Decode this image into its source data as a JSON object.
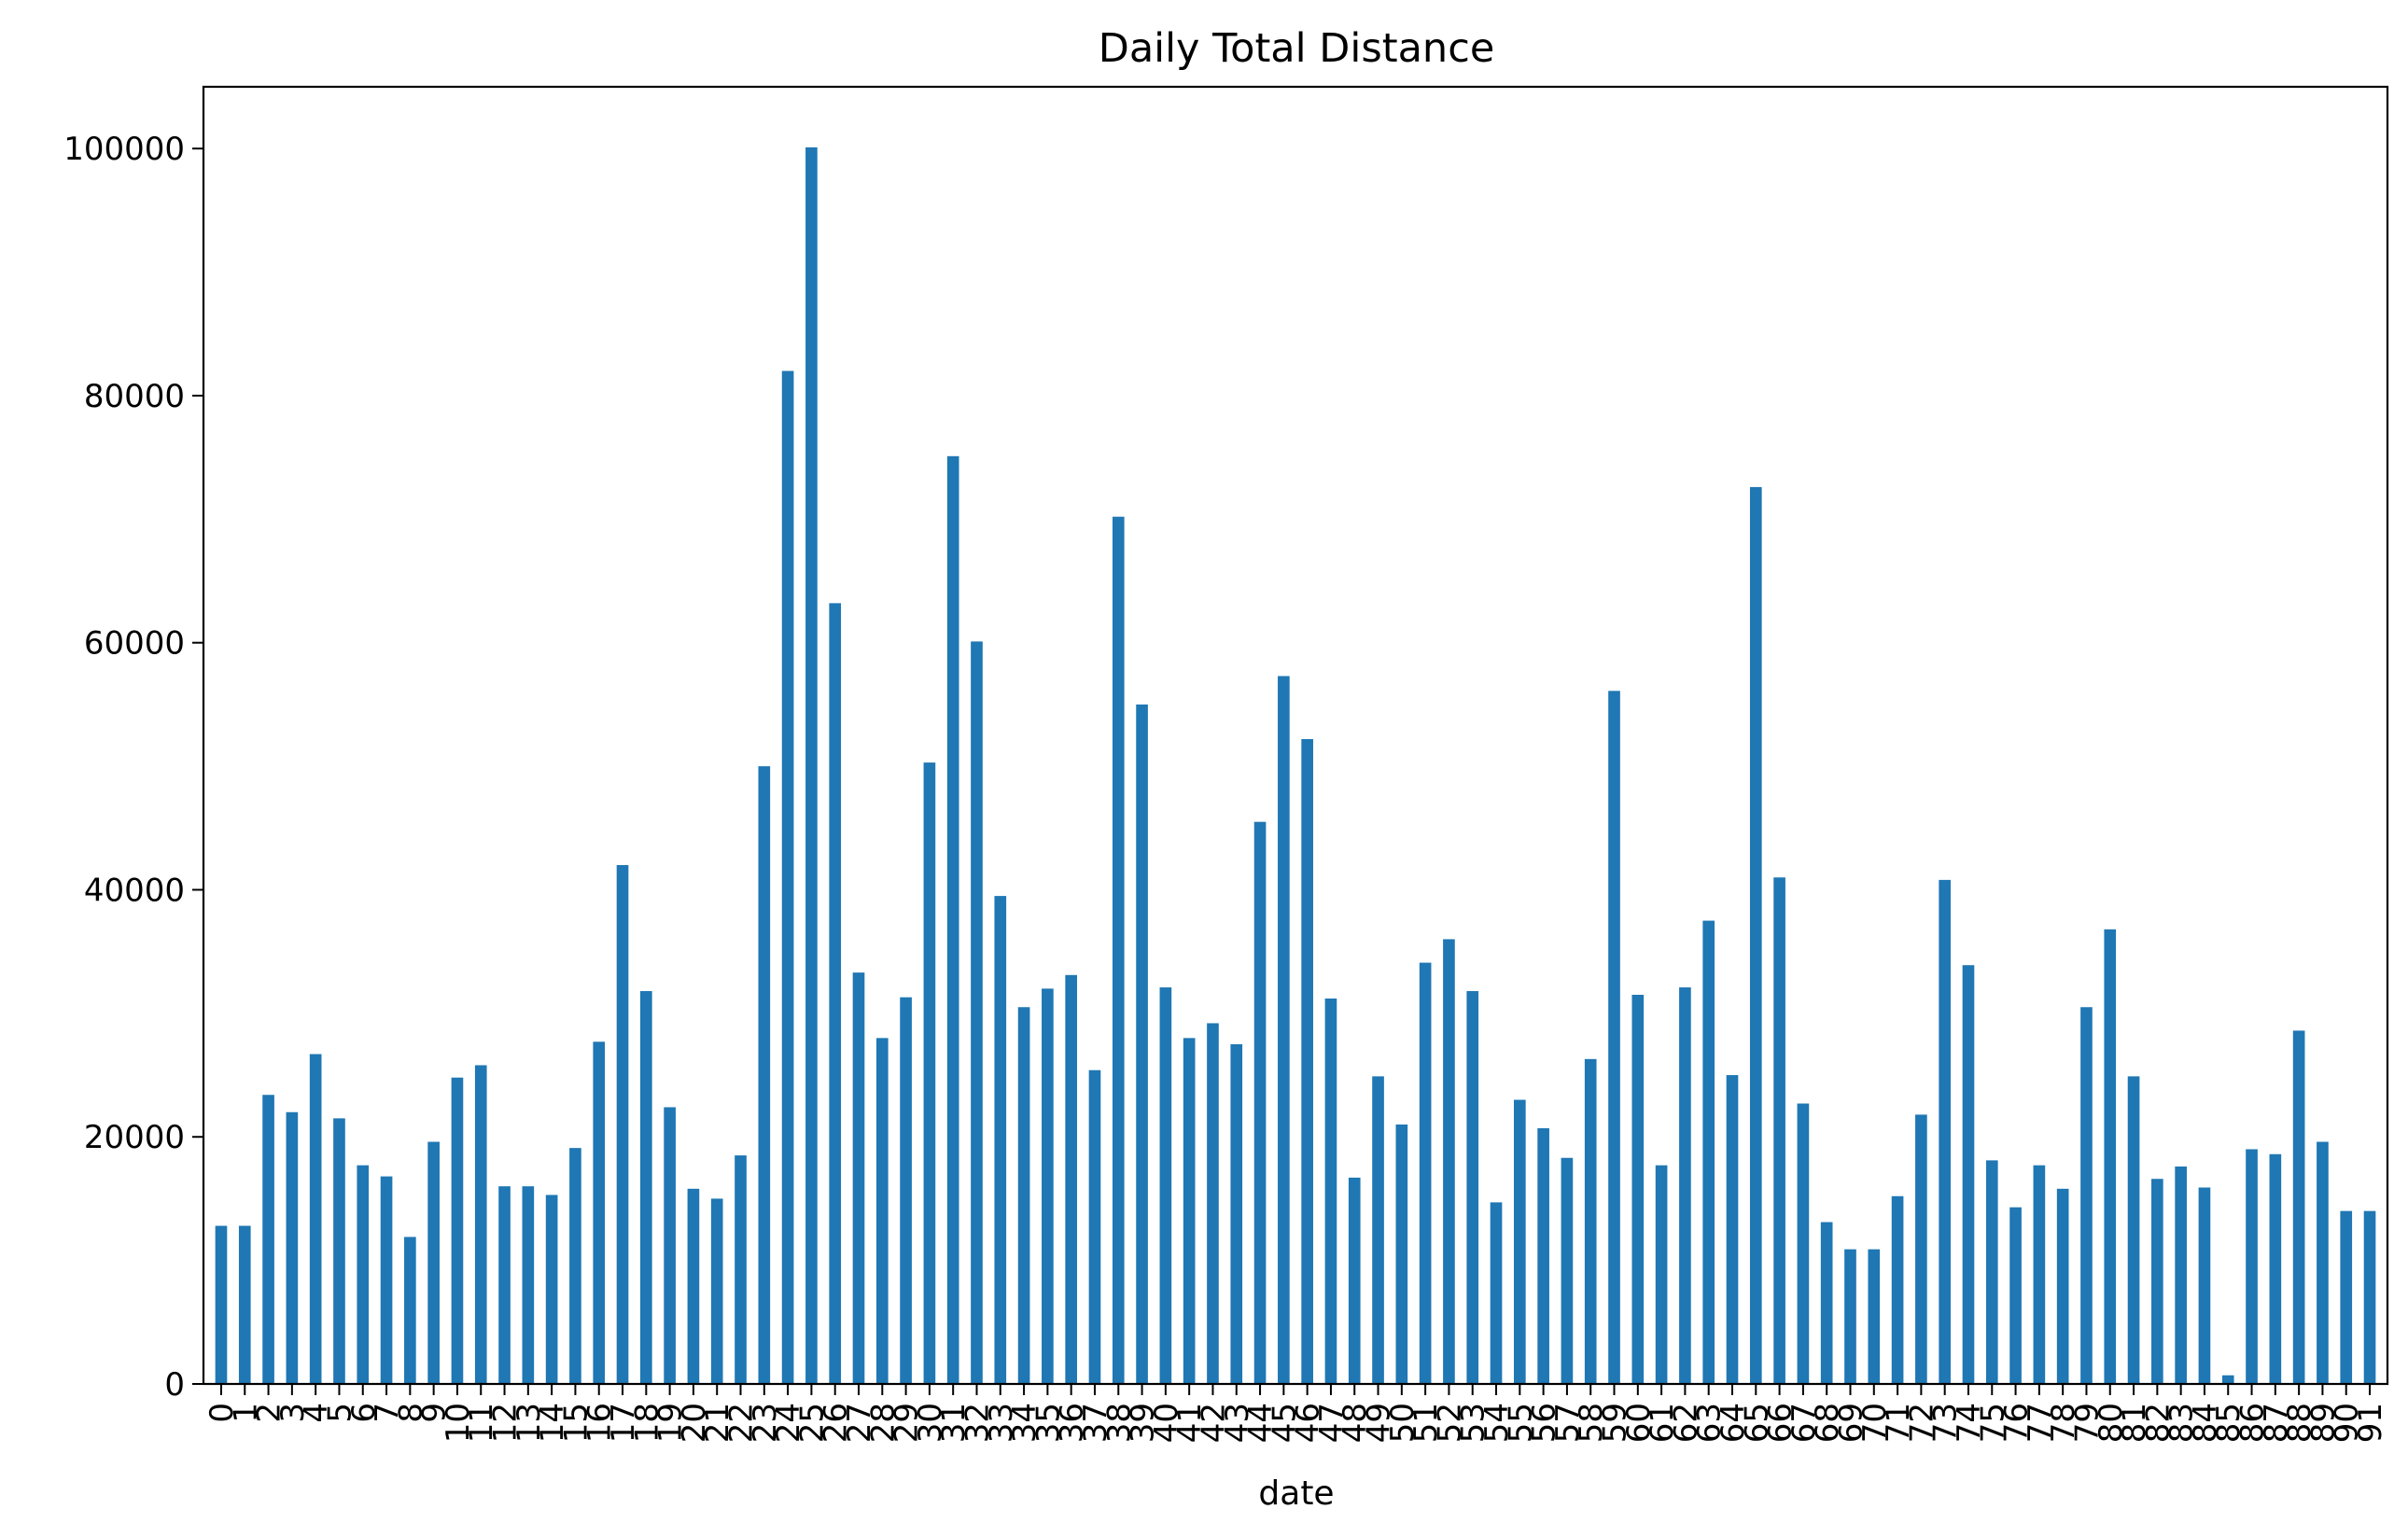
{
  "chart_data": {
    "type": "bar",
    "title": "Daily Total Distance",
    "xlabel": "date",
    "ylabel": "",
    "ylim": [
      0,
      105000
    ],
    "yticks": [
      0,
      20000,
      40000,
      60000,
      80000,
      100000
    ],
    "grid": false,
    "legend": "none",
    "bar_color": "#1f77b4",
    "categories": [
      "0",
      "1",
      "2",
      "3",
      "4",
      "5",
      "6",
      "7",
      "8",
      "9",
      "10",
      "11",
      "12",
      "13",
      "14",
      "15",
      "16",
      "17",
      "18",
      "19",
      "20",
      "21",
      "22",
      "23",
      "24",
      "25",
      "26",
      "27",
      "28",
      "29",
      "30",
      "31",
      "32",
      "33",
      "34",
      "35",
      "36",
      "37",
      "38",
      "39",
      "40",
      "41",
      "42",
      "43",
      "44",
      "45",
      "46",
      "47",
      "48",
      "49",
      "50",
      "51",
      "52",
      "53",
      "54",
      "55",
      "56",
      "57",
      "58",
      "59",
      "60",
      "61",
      "62",
      "63",
      "64",
      "65",
      "66",
      "67",
      "68",
      "69",
      "70",
      "71",
      "72",
      "73",
      "74",
      "75",
      "76",
      "77",
      "78",
      "79",
      "80",
      "81",
      "82",
      "83",
      "84",
      "85",
      "86",
      "87",
      "88",
      "89",
      "90",
      "91"
    ],
    "values": [
      12800,
      12800,
      23400,
      22000,
      26700,
      21500,
      17700,
      16800,
      11900,
      19600,
      24800,
      25800,
      16000,
      16000,
      15300,
      19100,
      27700,
      42000,
      31800,
      22400,
      15800,
      15000,
      18500,
      50000,
      82000,
      100100,
      63200,
      33300,
      28000,
      31300,
      50300,
      75100,
      60100,
      39500,
      30500,
      32000,
      33100,
      25400,
      70200,
      55000,
      32100,
      28000,
      29200,
      27500,
      45500,
      57300,
      52200,
      31200,
      16700,
      24900,
      21000,
      34100,
      36000,
      31800,
      14700,
      23000,
      20700,
      18300,
      26300,
      56100,
      31500,
      17700,
      32100,
      37500,
      25000,
      72600,
      41000,
      22700,
      13100,
      10900,
      10900,
      15200,
      21800,
      40800,
      33900,
      18100,
      14300,
      17700,
      15800,
      30500,
      36800,
      24900,
      16600,
      17600,
      15900,
      700,
      19000,
      18600,
      28600,
      19600,
      14000,
      14000
    ]
  }
}
